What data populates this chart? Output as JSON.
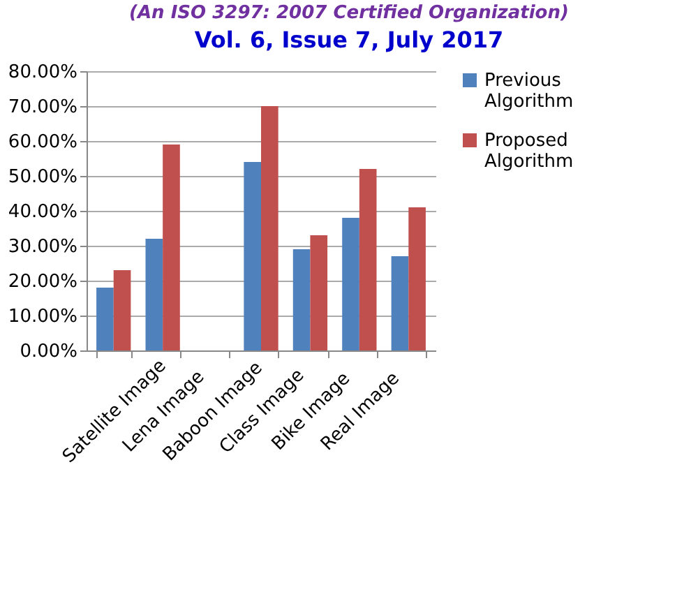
{
  "chart_data": {
    "type": "bar",
    "annotations": [
      "(An ISO 3297: 2007 Certified Organization)",
      "Vol. 6, Issue 7, July 2017"
    ],
    "categories": [
      "Satellite Image",
      "Lena Image",
      "Baboon Image",
      "Class Image",
      "Bike Image",
      "Real Image",
      null
    ],
    "series": [
      {
        "name": "Previous Algorithm",
        "color": "#4f81bd",
        "values": [
          18,
          32,
          null,
          54,
          29,
          38,
          27
        ]
      },
      {
        "name": "Proposed Algorithm",
        "color": "#c0504d",
        "values": [
          23,
          59,
          null,
          70,
          33,
          52,
          41
        ]
      }
    ],
    "ylim": [
      0,
      80
    ],
    "yticks": [
      {
        "value": 0,
        "label": "0.00%"
      },
      {
        "value": 10,
        "label": "10.00%"
      },
      {
        "value": 20,
        "label": "20.00%"
      },
      {
        "value": 30,
        "label": "30.00%"
      },
      {
        "value": 40,
        "label": "40.00%"
      },
      {
        "value": 50,
        "label": "50.00%"
      },
      {
        "value": 60,
        "label": "60.00%"
      },
      {
        "value": 70,
        "label": "70.00%"
      },
      {
        "value": 80,
        "label": "80.00%"
      }
    ],
    "grid": "y",
    "legend": "right"
  }
}
